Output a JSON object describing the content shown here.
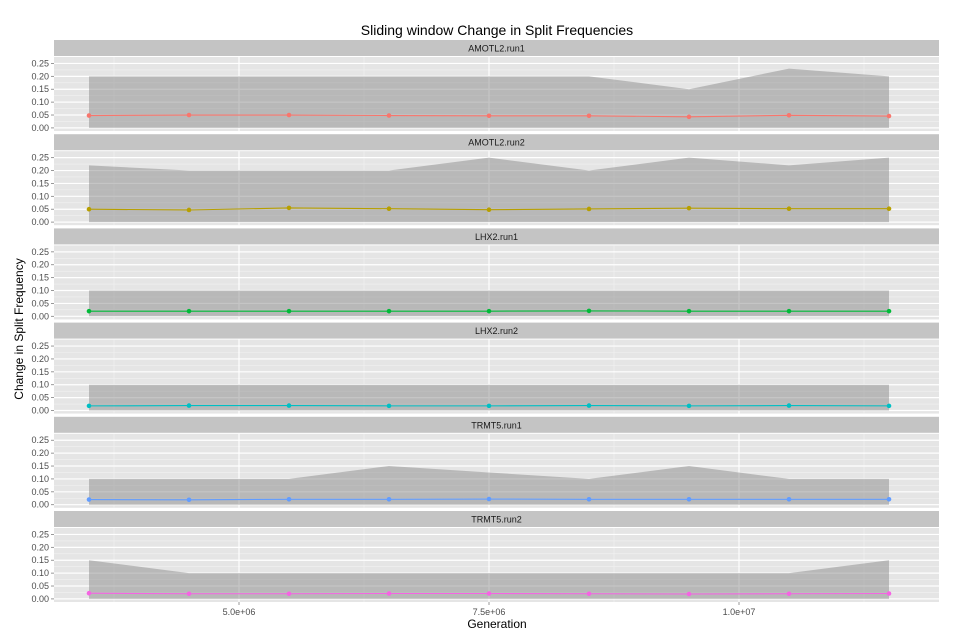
{
  "chart_data": {
    "type": "line",
    "title": "Sliding window Change in Split Frequencies",
    "xlabel": "Generation",
    "ylabel": "Change in Split Frequency",
    "xlim": [
      3150000,
      12000000
    ],
    "ylim": [
      -0.012,
      0.275
    ],
    "x_ticks": [
      5000000,
      7500000,
      10000000
    ],
    "x_tick_labels": [
      "5.0e+06",
      "7.5e+06",
      "1.0e+07"
    ],
    "y_ticks": [
      0.0,
      0.05,
      0.1,
      0.15,
      0.2,
      0.25
    ],
    "y_tick_labels": [
      "0.00",
      "0.05",
      "0.10",
      "0.15",
      "0.20",
      "0.25"
    ],
    "grid": true,
    "x": [
      3500000,
      4500000,
      5500000,
      6500000,
      7500000,
      8500000,
      9500000,
      10500000,
      11500000
    ],
    "panels": [
      {
        "name": "AMOTL2.run1",
        "color": "#F8766D",
        "values": [
          0.048,
          0.05,
          0.05,
          0.048,
          0.047,
          0.047,
          0.043,
          0.049,
          0.046
        ],
        "band_lower": [
          0,
          0,
          0,
          0,
          0,
          0,
          0,
          0,
          0
        ],
        "band_upper": [
          0.2,
          0.2,
          0.2,
          0.2,
          0.2,
          0.2,
          0.15,
          0.23,
          0.2
        ]
      },
      {
        "name": "AMOTL2.run2",
        "color": "#B79F00",
        "values": [
          0.05,
          0.047,
          0.055,
          0.052,
          0.048,
          0.051,
          0.054,
          0.052,
          0.052
        ],
        "band_lower": [
          0,
          0,
          0,
          0,
          0,
          0,
          0,
          0,
          0
        ],
        "band_upper": [
          0.22,
          0.2,
          0.2,
          0.2,
          0.25,
          0.2,
          0.25,
          0.22,
          0.25
        ]
      },
      {
        "name": "LHX2.run1",
        "color": "#00BA38",
        "values": [
          0.02,
          0.02,
          0.02,
          0.02,
          0.02,
          0.021,
          0.02,
          0.02,
          0.02
        ],
        "band_lower": [
          0,
          0,
          0,
          0,
          0,
          0,
          0,
          0,
          0
        ],
        "band_upper": [
          0.1,
          0.1,
          0.1,
          0.1,
          0.1,
          0.1,
          0.1,
          0.1,
          0.1
        ]
      },
      {
        "name": "LHX2.run2",
        "color": "#00BFC4",
        "values": [
          0.018,
          0.019,
          0.019,
          0.018,
          0.018,
          0.019,
          0.018,
          0.019,
          0.018
        ],
        "band_lower": [
          0,
          0,
          0,
          0,
          0,
          0,
          0,
          0,
          0
        ],
        "band_upper": [
          0.1,
          0.1,
          0.1,
          0.1,
          0.1,
          0.1,
          0.1,
          0.1,
          0.1
        ]
      },
      {
        "name": "TRMT5.run1",
        "color": "#619CFF",
        "values": [
          0.02,
          0.019,
          0.021,
          0.021,
          0.022,
          0.021,
          0.021,
          0.021,
          0.021
        ],
        "band_lower": [
          0,
          0,
          0,
          0,
          0,
          0,
          0,
          0,
          0
        ],
        "band_upper": [
          0.1,
          0.1,
          0.1,
          0.15,
          0.125,
          0.1,
          0.15,
          0.1,
          0.1
        ]
      },
      {
        "name": "TRMT5.run2",
        "color": "#F564E3",
        "values": [
          0.022,
          0.02,
          0.02,
          0.021,
          0.021,
          0.02,
          0.019,
          0.02,
          0.021
        ],
        "band_lower": [
          0,
          0,
          0,
          0,
          0,
          0,
          0,
          0,
          0
        ],
        "band_upper": [
          0.15,
          0.1,
          0.1,
          0.1,
          0.1,
          0.1,
          0.1,
          0.1,
          0.15
        ]
      }
    ]
  }
}
